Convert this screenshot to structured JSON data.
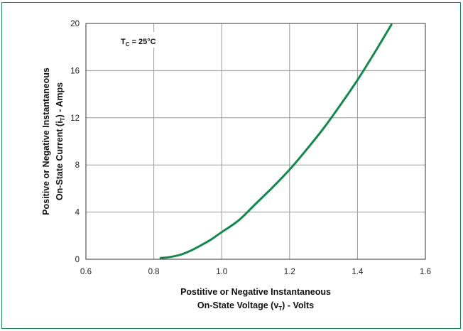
{
  "chart_data": {
    "type": "line",
    "title": "",
    "xlabel_line1": "Postitive or Negative Instantaneous",
    "xlabel_line2_pre": "On-State Voltage (v",
    "xlabel_line2_sub": "T",
    "xlabel_line2_post": ") - Volts",
    "ylabel_line1": "Positive or Negative Instantaneous",
    "ylabel_line2_pre": "On-State Current (i",
    "ylabel_line2_sub": "T",
    "ylabel_line2_post": ") - Amps",
    "annotation_pre": "T",
    "annotation_sub": "C",
    "annotation_post": " = 25°C",
    "xlim": [
      0.6,
      1.6
    ],
    "ylim": [
      0,
      20
    ],
    "xticks": [
      0.6,
      0.8,
      1.0,
      1.2,
      1.4,
      1.6
    ],
    "xtick_labels": [
      "0.6",
      "0.8",
      "1.0",
      "1.2",
      "1.4",
      "1.6"
    ],
    "yticks": [
      0,
      4,
      8,
      12,
      16,
      20
    ],
    "ytick_labels": [
      "0",
      "4",
      "8",
      "12",
      "16",
      "20"
    ],
    "grid": true,
    "line_color": "#15874f",
    "frame_color": "#1a8a5a",
    "series": [
      {
        "x": [
          0.82,
          0.85,
          0.88,
          0.91,
          0.94,
          0.97,
          1.0,
          1.05,
          1.1,
          1.15,
          1.2,
          1.25,
          1.3,
          1.35,
          1.4,
          1.45,
          1.5
        ],
        "y": [
          0.1,
          0.2,
          0.4,
          0.75,
          1.2,
          1.7,
          2.3,
          3.3,
          4.7,
          6.1,
          7.6,
          9.3,
          11.1,
          13.1,
          15.2,
          17.5,
          19.9
        ]
      }
    ]
  }
}
